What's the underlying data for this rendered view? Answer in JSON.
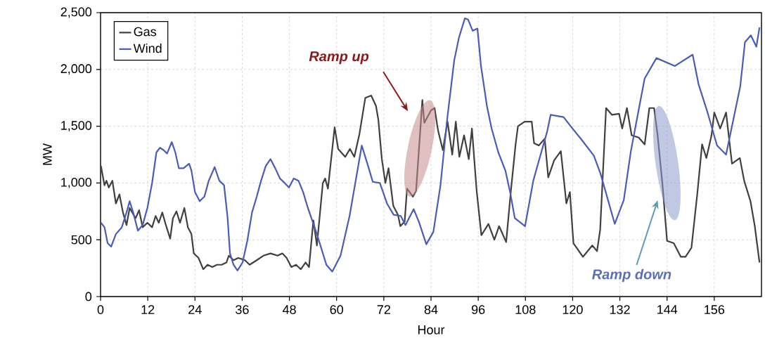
{
  "chart_data": {
    "type": "line",
    "xlabel": "Hour",
    "ylabel": "MW",
    "xlim": [
      0,
      168
    ],
    "ylim": [
      0,
      2500
    ],
    "xticks": [
      0,
      12,
      24,
      36,
      48,
      60,
      72,
      84,
      96,
      108,
      120,
      132,
      144,
      156
    ],
    "yticks": [
      0,
      500,
      {
        "value": 1000,
        "label": "1,000"
      },
      {
        "value": 1500,
        "label": "1,500"
      },
      {
        "value": 2000,
        "label": "2,000"
      },
      {
        "value": 2500,
        "label": "2,500"
      }
    ],
    "grid": true,
    "legend": "top left",
    "line_style": "solid",
    "series": [
      {
        "name": "Gas",
        "color": "#404040",
        "x": [
          0.1,
          1,
          1.5,
          2.1,
          3,
          3.9,
          4.8,
          5.7,
          6.6,
          7.4,
          8.9,
          9.8,
          10.7,
          11.9,
          13.1,
          14,
          14.8,
          15.7,
          16.6,
          17.7,
          18.4,
          19.3,
          20.2,
          21.3,
          22.2,
          23.1,
          23.7,
          24.9,
          26.1,
          27.2,
          28.4,
          29.6,
          30.8,
          32,
          32.6,
          33.8,
          35,
          36.7,
          37.9,
          39.7,
          41.4,
          43.2,
          45,
          46.2,
          47.3,
          48.5,
          49.7,
          50.9,
          52.1,
          53,
          53.5,
          54.1,
          55,
          56.5,
          57.1,
          57.8,
          59.5,
          60.4,
          62.2,
          63.4,
          64.5,
          65.8,
          67.3,
          68.8,
          70,
          70.6,
          71.5,
          72.4,
          73.2,
          74.4,
          75.6,
          76.2,
          77.3,
          77.9,
          79.4,
          80.2,
          81.8,
          82.3,
          84,
          84.9,
          85.8,
          87,
          88.2,
          89.4,
          90.3,
          91.2,
          92.4,
          93.6,
          94.4,
          95.6,
          96.8,
          98.6,
          100.1,
          101.3,
          103.1,
          104.3,
          105.5,
          106.1,
          107.8,
          109.6,
          110.2,
          111.4,
          112.9,
          113.8,
          115.3,
          117,
          118.4,
          119.3,
          120.2,
          122.6,
          125,
          126.2,
          127,
          128.5,
          130,
          131.8,
          132.6,
          133.8,
          135,
          136.8,
          138.3,
          139.5,
          140.7,
          141.6,
          142.8,
          144,
          145.7,
          147.5,
          148.7,
          150.2,
          151.7,
          152.9,
          154,
          155.3,
          156,
          157.5,
          159,
          160.5,
          162.5,
          163.6,
          165.2,
          166.3,
          167.5
        ],
        "values": [
          1150,
          980,
          1020,
          960,
          1020,
          820,
          900,
          740,
          630,
          780,
          690,
          760,
          610,
          650,
          610,
          710,
          650,
          740,
          630,
          510,
          690,
          750,
          650,
          780,
          610,
          550,
          380,
          340,
          240,
          280,
          260,
          280,
          280,
          300,
          360,
          320,
          340,
          320,
          280,
          320,
          360,
          380,
          360,
          380,
          340,
          260,
          280,
          240,
          300,
          260,
          450,
          670,
          450,
          1000,
          1040,
          950,
          1490,
          1300,
          1230,
          1300,
          1230,
          1430,
          1750,
          1770,
          1680,
          1560,
          1210,
          1000,
          1130,
          800,
          720,
          620,
          660,
          950,
          880,
          930,
          1730,
          1530,
          1640,
          1660,
          1460,
          1290,
          1540,
          1250,
          1540,
          1230,
          1420,
          1210,
          1480,
          930,
          540,
          640,
          500,
          620,
          480,
          930,
          1340,
          1500,
          1540,
          1540,
          1350,
          1330,
          1390,
          1050,
          1200,
          1280,
          820,
          920,
          470,
          350,
          450,
          400,
          590,
          1660,
          1600,
          1610,
          1480,
          1660,
          1420,
          1400,
          1340,
          1660,
          1660,
          1420,
          1000,
          490,
          470,
          350,
          350,
          430,
          910,
          1340,
          1220,
          1420,
          1620,
          1480,
          1620,
          1170,
          1220,
          1020,
          840,
          620,
          300
        ]
      },
      {
        "name": "Wind",
        "color": "#4a5cb8",
        "x": [
          0.1,
          1,
          1.8,
          2.7,
          3.9,
          5.4,
          6.6,
          7.4,
          8.3,
          9.5,
          10.7,
          11.9,
          13.1,
          14.2,
          15.1,
          16,
          16.9,
          18.1,
          19,
          19.9,
          21.1,
          22.5,
          23.1,
          24,
          25.2,
          26.4,
          27.5,
          29,
          30.2,
          31.4,
          32.3,
          32.9,
          33.8,
          34.8,
          36.1,
          37.3,
          38.5,
          39.7,
          40.8,
          42,
          43.2,
          44.4,
          45.6,
          46.8,
          47.9,
          49.1,
          50.3,
          51.5,
          52.7,
          55,
          57.4,
          58.9,
          61,
          63.3,
          65.1,
          66.4,
          68,
          69.2,
          71,
          72.8,
          74.5,
          76.3,
          77.5,
          79.6,
          81,
          82.8,
          84.6,
          86.4,
          88.1,
          89.9,
          91.1,
          92.6,
          93.4,
          94.6,
          95.8,
          96.7,
          98.2,
          99.4,
          101.1,
          102.9,
          104.1,
          105.3,
          107.9,
          110,
          111.2,
          113.5,
          114.4,
          117.7,
          119.5,
          122.3,
          125.4,
          127.1,
          130.7,
          133,
          134.8,
          137.2,
          138.3,
          141.3,
          146,
          150.5,
          152,
          154.3,
          156.7,
          159,
          162.6,
          163.8,
          165.3,
          166.7,
          167.5
        ],
        "values": [
          650,
          610,
          470,
          440,
          550,
          610,
          740,
          840,
          740,
          580,
          630,
          780,
          1000,
          1270,
          1310,
          1290,
          1260,
          1360,
          1270,
          1130,
          1130,
          1170,
          1110,
          920,
          840,
          880,
          1020,
          1140,
          1020,
          980,
          690,
          380,
          280,
          230,
          300,
          490,
          740,
          880,
          1020,
          1150,
          1210,
          1130,
          1040,
          1000,
          960,
          1040,
          1020,
          920,
          780,
          550,
          280,
          220,
          360,
          710,
          1070,
          1330,
          1150,
          1010,
          1000,
          820,
          720,
          710,
          630,
          770,
          650,
          460,
          570,
          980,
          1560,
          2080,
          2280,
          2450,
          2440,
          2340,
          2360,
          2030,
          1680,
          1480,
          1270,
          1110,
          920,
          690,
          620,
          1020,
          1170,
          1450,
          1600,
          1580,
          1500,
          1380,
          1240,
          1080,
          640,
          850,
          1280,
          1720,
          1920,
          2100,
          2030,
          2130,
          1870,
          1620,
          1330,
          1250,
          1850,
          2240,
          2300,
          2200,
          2370
        ]
      }
    ],
    "annotations": [
      "Ramp up",
      "Ramp down"
    ]
  }
}
